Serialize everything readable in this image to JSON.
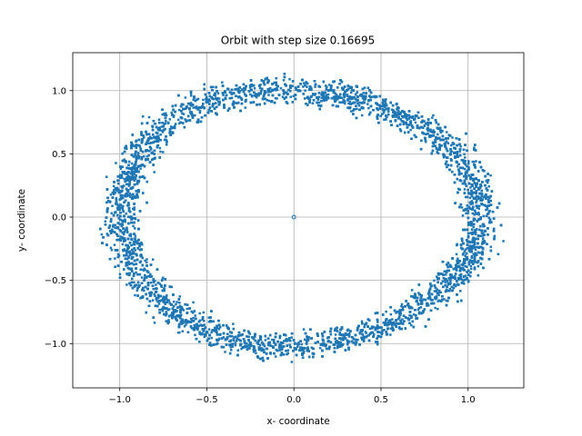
{
  "chart_data": {
    "type": "scatter",
    "title": "Orbit with step size 0.16695",
    "xlabel": "x- coordinate",
    "ylabel": "y- coordinate",
    "xlim": [
      -1.27,
      1.32
    ],
    "ylim": [
      -1.35,
      1.3
    ],
    "xticks": [
      -1.0,
      -0.5,
      0.0,
      0.5,
      1.0
    ],
    "xtick_labels": [
      "−1.0",
      "−0.5",
      "0.0",
      "0.5",
      "1.0"
    ],
    "yticks": [
      -1.0,
      -0.5,
      0.0,
      0.5,
      1.0
    ],
    "ytick_labels": [
      "−1.0",
      "−0.5",
      "0.0",
      "0.5",
      "1.0"
    ],
    "grid": true,
    "color": "#1f77b4",
    "series": [
      {
        "points": [
          [
            1.0,
            0.05
          ],
          [
            0.94,
            0.4
          ],
          [
            0.75,
            0.72
          ],
          [
            0.45,
            0.95
          ],
          [
            0.1,
            1.02
          ],
          [
            -0.25,
            0.97
          ],
          [
            -0.58,
            0.8
          ],
          [
            -0.85,
            0.52
          ],
          [
            -1.02,
            0.15
          ],
          [
            -1.03,
            -0.22
          ],
          [
            -0.9,
            -0.58
          ],
          [
            -0.62,
            -0.85
          ],
          [
            -0.28,
            -1.0
          ],
          [
            0.08,
            -1.03
          ],
          [
            0.42,
            -0.94
          ],
          [
            0.72,
            -0.72
          ],
          [
            0.93,
            -0.4
          ],
          [
            1.06,
            -0.02
          ],
          [
            0.0,
            0.0
          ]
        ]
      }
    ],
    "ring": {
      "center_x": 0.02,
      "center_y": 0.0,
      "inner_rx": 0.88,
      "outer_rx": 1.18,
      "inner_ry": 0.86,
      "outer_ry": 1.17,
      "n_points": 9000,
      "marker_size": 2.5
    }
  }
}
